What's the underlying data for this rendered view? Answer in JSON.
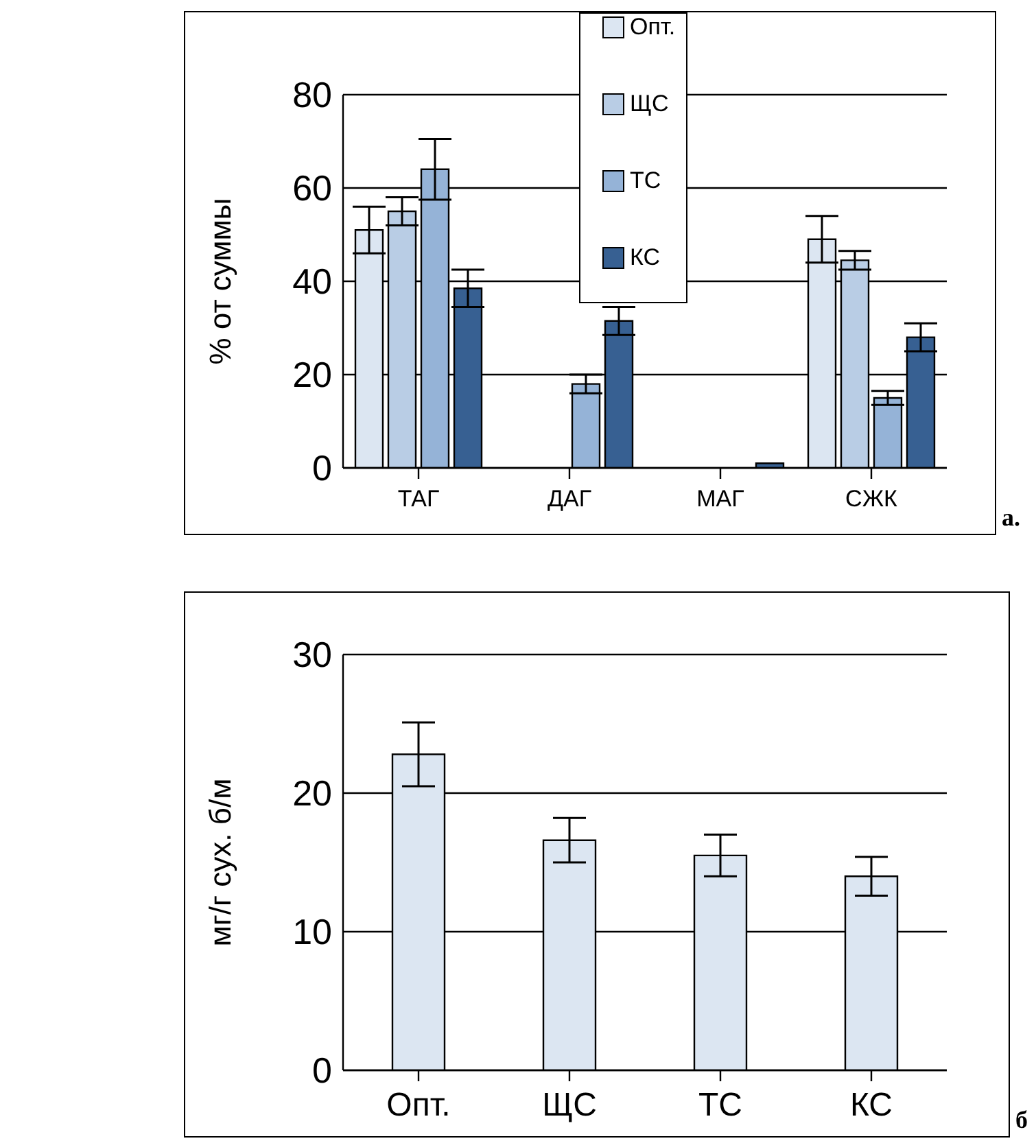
{
  "chart_data": [
    {
      "type": "bar",
      "ylabel": "% от суммы",
      "categories": [
        "ТАГ",
        "ДАГ",
        "МАГ",
        "СЖК"
      ],
      "ylim": [
        0,
        80
      ],
      "yticks": [
        0,
        20,
        40,
        60,
        80
      ],
      "grid": "y",
      "legend": "top",
      "annotations": [
        "а."
      ],
      "series": [
        {
          "name": "Опт.",
          "color": "#dce6f2",
          "values": [
            51,
            null,
            null,
            49
          ],
          "errors": [
            5,
            null,
            null,
            5
          ]
        },
        {
          "name": "ЩС",
          "color": "#b9cde5",
          "values": [
            55,
            null,
            null,
            44.5
          ],
          "errors": [
            3,
            null,
            null,
            2
          ]
        },
        {
          "name": "ТС",
          "color": "#95b3d7",
          "values": [
            64,
            18,
            null,
            15
          ],
          "errors": [
            6.5,
            2,
            null,
            1.5
          ]
        },
        {
          "name": "КС",
          "color": "#376092",
          "values": [
            38.5,
            31.5,
            1,
            28
          ],
          "errors": [
            4,
            3,
            null,
            3
          ]
        }
      ]
    },
    {
      "type": "bar",
      "ylabel": "мг/г сух. б/м",
      "categories": [
        "Опт.",
        "ЩС",
        "ТС",
        "КС"
      ],
      "ylim": [
        0,
        30
      ],
      "yticks": [
        0,
        10,
        20,
        30
      ],
      "grid": "y",
      "annotations": [
        "б"
      ],
      "series": [
        {
          "color": "#dce6f2",
          "values": [
            22.8,
            16.6,
            15.5,
            14.0
          ],
          "errors": [
            2.3,
            1.6,
            1.5,
            1.4
          ]
        }
      ]
    }
  ]
}
